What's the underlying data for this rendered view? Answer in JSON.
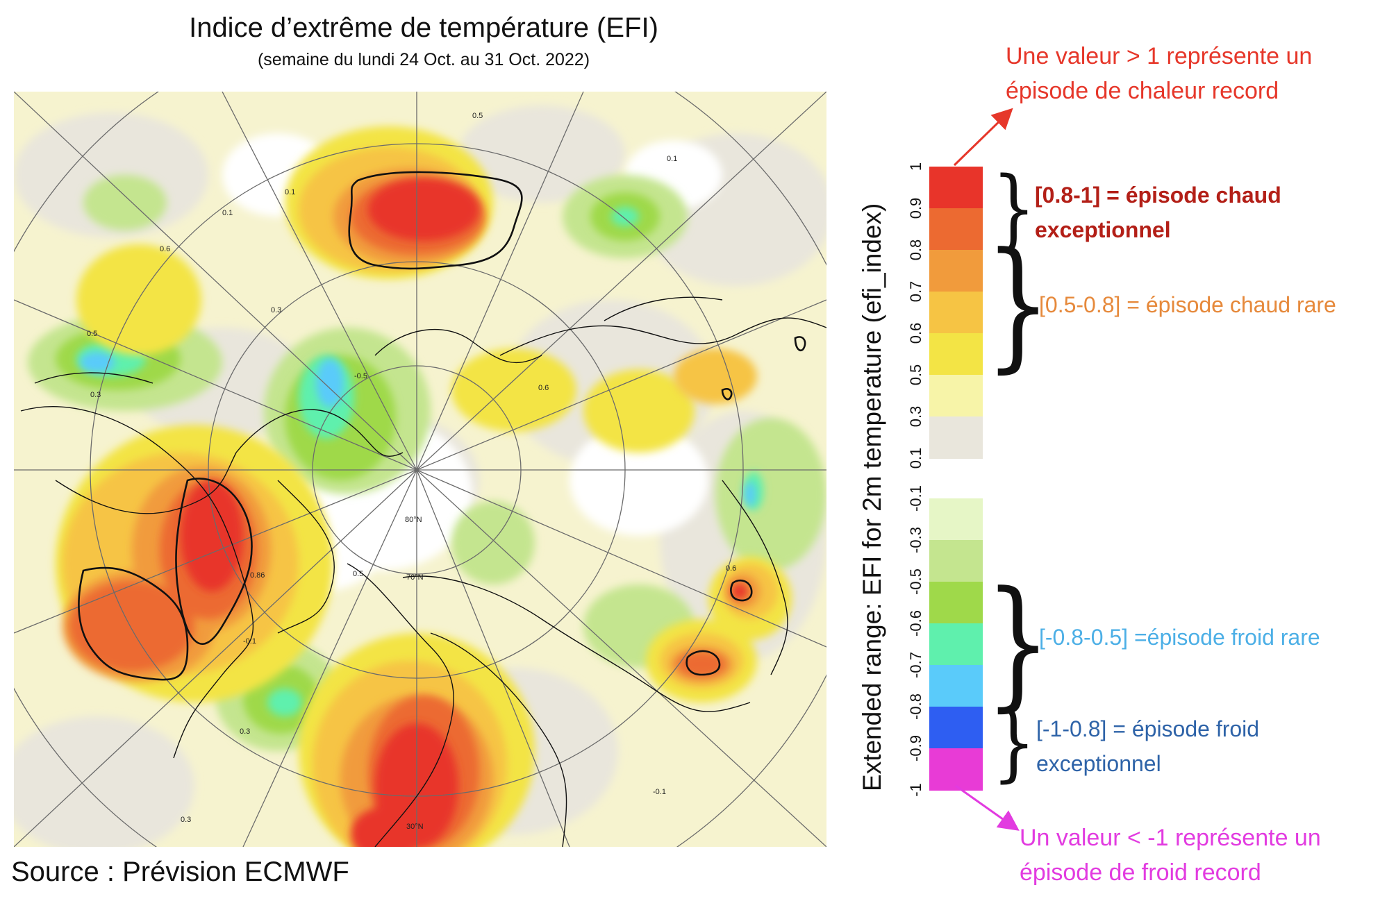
{
  "title": "Indice d’extrême de température (EFI)",
  "subtitle": "(semaine du lundi 24 Oct. au 31 Oct. 2022)",
  "source": "Source : Prévision ECMWF",
  "colorbar": {
    "title": "Extended range: EFI for 2m temperature (efi_index)",
    "ticks": [
      "1",
      "0.9",
      "0.8",
      "0.7",
      "0.6",
      "0.5",
      "0.3",
      "0.1",
      "0.1",
      "-0.1",
      "-0.3",
      "-0.5",
      "-0.6",
      "-0.7",
      "-0.8",
      "-0.9",
      "-1"
    ],
    "colors": {
      "0.9_1": "#e8342a",
      "0.8_0.9": "#ec6a31",
      "0.7_0.8": "#f19b3c",
      "0.6_0.7": "#f6c444",
      "0.5_0.6": "#f3e445",
      "0.3_0.5": "#f7f4a8",
      "0.1_0.3": "#e9e6dc",
      "-0.3_-0.1": "#e6f6c6",
      "-0.5_-0.3": "#c4e58f",
      "-0.6_-0.5": "#9fd94a",
      "-0.7_-0.6": "#5ff0ad",
      "-0.8_-0.7": "#5acbfa",
      "-0.9_-0.8": "#2e5ef2",
      "-1_-0.9": "#e83bd6"
    }
  },
  "annotations": {
    "hot_record_line1": "Une valeur > 1 représente un",
    "hot_record_line2": "épisode de chaleur record",
    "hot_exceptional_line1": "[0.8-1] = épisode chaud",
    "hot_exceptional_line2": "exceptionnel",
    "hot_rare": "[0.5-0.8] = épisode chaud rare",
    "cold_rare": "[-0.8-0.5] =épisode froid rare",
    "cold_exceptional_line1": "[-1-0.8] = épisode froid",
    "cold_exceptional_line2": "exceptionnel",
    "cold_record_line1": "Un valeur < -1 représente un",
    "cold_record_line2": "épisode de froid record"
  },
  "map": {
    "projection": "polar stereographic (North Pole)",
    "contour_labels": [
      "0.5",
      "0.1",
      "0.6",
      "0.3",
      "0.5",
      "-0.5",
      "0.3",
      "0.6",
      "-0.1",
      "0.6",
      "0.3",
      "0.5",
      "0.1",
      "0.86",
      "-0.1",
      "0.3",
      "0.1"
    ],
    "latitude_labels": [
      "80°N",
      "70°N",
      "30°N"
    ]
  }
}
